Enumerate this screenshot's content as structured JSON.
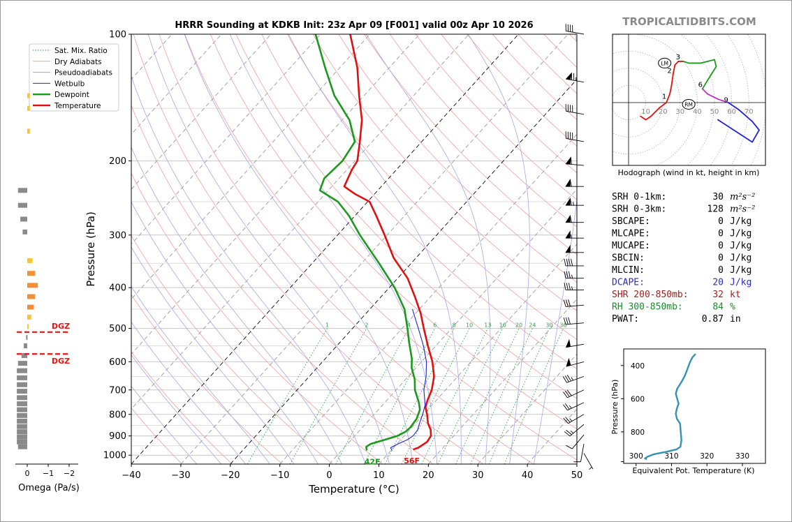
{
  "title": "HRRR Sounding at KDKB Init: 23z Apr 09 [F001] valid 00z Apr 10 2026",
  "watermark": "TROPICALTIDBITS.COM",
  "legend": [
    {
      "label": "Sat. Mix. Ratio",
      "color": "#2e9e4a",
      "style": "dotted"
    },
    {
      "label": "Dry Adiabats",
      "color": "#f0a0a0",
      "style": "solid"
    },
    {
      "label": "Pseudoadiabats",
      "color": "#a0a0e8",
      "style": "solid"
    },
    {
      "label": "Wetbulb",
      "color": "#1f1fe0",
      "style": "solid"
    },
    {
      "label": "Dewpoint",
      "color": "#1a9a1a",
      "style": "solid-thick"
    },
    {
      "label": "Temperature",
      "color": "#e01010",
      "style": "solid-thick"
    }
  ],
  "omega": {
    "xlabel": "Omega (Pa/s)",
    "ticks": [
      "0",
      "−1",
      "−2"
    ],
    "dgz_label": "DGZ"
  },
  "surface": {
    "dewpoint": "42F",
    "temperature": "56F"
  },
  "mixing_ratio_labels": [
    "1",
    "2",
    "4",
    "6",
    "8",
    "10",
    "13",
    "16",
    "20",
    "24",
    "30",
    "36"
  ],
  "hodograph": {
    "label": "Hodograph (wind in kt, height in km)",
    "ring_labels": [
      "10",
      "20",
      "30",
      "40",
      "50",
      "60",
      "70"
    ],
    "height_marks": [
      "1",
      "2",
      "3",
      "6",
      "9"
    ],
    "lm_label": "LM",
    "rm_label": "RM"
  },
  "indices": [
    {
      "name": "SRH 0-1km:",
      "value": "30",
      "unit": "m²s⁻²",
      "color": "#000000"
    },
    {
      "name": "SRH 0-3km:",
      "value": "128",
      "unit": "m²s⁻²",
      "color": "#000000"
    },
    {
      "name": "SBCAPE:",
      "value": "0",
      "unit": "J/kg",
      "color": "#000000"
    },
    {
      "name": "MLCAPE:",
      "value": "0",
      "unit": "J/kg",
      "color": "#000000"
    },
    {
      "name": "MUCAPE:",
      "value": "0",
      "unit": "J/kg",
      "color": "#000000"
    },
    {
      "name": "SBCIN:",
      "value": "0",
      "unit": "J/kg",
      "color": "#000000"
    },
    {
      "name": "MLCIN:",
      "value": "0",
      "unit": "J/kg",
      "color": "#000000"
    },
    {
      "name": "DCAPE:",
      "value": "20",
      "unit": "J/kg",
      "color": "#2a2ad0"
    },
    {
      "name": "SHR 200-850mb:",
      "value": "32",
      "unit": "kt",
      "color": "#a02020"
    },
    {
      "name": "RH 300-850mb:",
      "value": "84",
      "unit": "%",
      "color": "#1a8a2a"
    },
    {
      "name": "PWAT:",
      "value": "0.87",
      "unit": "in",
      "color": "#000000"
    }
  ],
  "theta_e": {
    "ylabel": "Pressure (hPa)",
    "xlabel": "Equivalent Pot. Temperature (K)",
    "xticks": [
      "300",
      "310",
      "320",
      "330"
    ],
    "yticks": [
      "400",
      "600",
      "800"
    ]
  },
  "chart_data": {
    "type": "line",
    "title": "HRRR Sounding at KDKB Init: 23z Apr 09 [F001] valid 00z Apr 10 2026",
    "xlabel": "Temperature (°C)",
    "ylabel": "Pressure (hPa)",
    "xlim": [
      -40,
      50
    ],
    "ylim": [
      1050,
      100
    ],
    "y_scale": "log",
    "skew": "skew-T log-P",
    "xticks": [
      "−40",
      "−30",
      "−20",
      "−10",
      "0",
      "10",
      "20",
      "30",
      "40",
      "50"
    ],
    "yticks": [
      "100",
      "200",
      "300",
      "400",
      "500",
      "600",
      "700",
      "800",
      "900",
      "1000"
    ],
    "series": [
      {
        "name": "Temperature",
        "color": "#e01010",
        "points": [
          [
            970,
            14.3
          ],
          [
            960,
            15.0
          ],
          [
            930,
            15.7
          ],
          [
            900,
            15.4
          ],
          [
            870,
            14.2
          ],
          [
            840,
            12.5
          ],
          [
            800,
            10.7
          ],
          [
            770,
            9.1
          ],
          [
            740,
            8.2
          ],
          [
            700,
            7.2
          ],
          [
            650,
            5.2
          ],
          [
            600,
            2.2
          ],
          [
            550,
            -1.6
          ],
          [
            500,
            -5.6
          ],
          [
            460,
            -9.0
          ],
          [
            420,
            -13.2
          ],
          [
            380,
            -18.0
          ],
          [
            340,
            -24.5
          ],
          [
            300,
            -30.5
          ],
          [
            270,
            -35.7
          ],
          [
            250,
            -39.6
          ],
          [
            240,
            -43.8
          ],
          [
            230,
            -47.5
          ],
          [
            210,
            -49.0
          ],
          [
            200,
            -49.5
          ],
          [
            180,
            -52.5
          ],
          [
            160,
            -56.0
          ],
          [
            140,
            -61.0
          ],
          [
            120,
            -66.5
          ],
          [
            100,
            -74.0
          ]
        ]
      },
      {
        "name": "Dewpoint",
        "color": "#1a9a1a",
        "points": [
          [
            975,
            5.1
          ],
          [
            955,
            4.3
          ],
          [
            940,
            4.7
          ],
          [
            920,
            6.7
          ],
          [
            900,
            8.6
          ],
          [
            880,
            9.5
          ],
          [
            860,
            9.7
          ],
          [
            820,
            9.4
          ],
          [
            780,
            8.4
          ],
          [
            750,
            6.9
          ],
          [
            700,
            3.8
          ],
          [
            660,
            1.8
          ],
          [
            620,
            -0.9
          ],
          [
            590,
            -2.5
          ],
          [
            540,
            -6.0
          ],
          [
            500,
            -8.9
          ],
          [
            450,
            -13.0
          ],
          [
            400,
            -18.9
          ],
          [
            350,
            -26.5
          ],
          [
            300,
            -35.5
          ],
          [
            270,
            -41.2
          ],
          [
            250,
            -46.0
          ],
          [
            235,
            -51.7
          ],
          [
            220,
            -53.0
          ],
          [
            200,
            -52.5
          ],
          [
            180,
            -53.5
          ],
          [
            160,
            -58.5
          ],
          [
            140,
            -66.0
          ],
          [
            120,
            -73.0
          ],
          [
            100,
            -81.0
          ]
        ]
      },
      {
        "name": "Wetbulb",
        "color": "#1f1fe0",
        "points": [
          [
            975,
            10.2
          ],
          [
            960,
            9.4
          ],
          [
            940,
            10.2
          ],
          [
            920,
            11.3
          ],
          [
            900,
            11.8
          ],
          [
            870,
            11.6
          ],
          [
            840,
            10.8
          ],
          [
            800,
            9.8
          ],
          [
            760,
            8.6
          ],
          [
            700,
            5.6
          ],
          [
            650,
            3.6
          ],
          [
            600,
            1.0
          ],
          [
            550,
            -2.5
          ],
          [
            500,
            -6.7
          ],
          [
            450,
            -11.4
          ]
        ]
      }
    ],
    "omega_pa_s": [
      {
        "p": 170,
        "v": 0.2
      },
      {
        "p": 150,
        "v": 0.2
      },
      {
        "p": 140,
        "v": 0.2
      },
      {
        "p": 235,
        "v": -0.8
      },
      {
        "p": 255,
        "v": -0.8
      },
      {
        "p": 275,
        "v": -0.6
      },
      {
        "p": 295,
        "v": -0.4
      },
      {
        "p": 345,
        "v": 0.4
      },
      {
        "p": 370,
        "v": 0.6
      },
      {
        "p": 395,
        "v": 0.8
      },
      {
        "p": 420,
        "v": 0.6
      },
      {
        "p": 445,
        "v": 0.5
      },
      {
        "p": 470,
        "v": 0.3
      },
      {
        "p": 495,
        "v": 0.1
      },
      {
        "p": 525,
        "v": -0.1
      },
      {
        "p": 550,
        "v": -0.3
      },
      {
        "p": 580,
        "v": -0.5
      },
      {
        "p": 605,
        "v": -0.8
      },
      {
        "p": 630,
        "v": -0.9
      },
      {
        "p": 655,
        "v": -0.9
      },
      {
        "p": 680,
        "v": -0.9
      },
      {
        "p": 705,
        "v": -0.9
      },
      {
        "p": 730,
        "v": -0.9
      },
      {
        "p": 755,
        "v": -0.9
      },
      {
        "p": 780,
        "v": -0.9
      },
      {
        "p": 805,
        "v": -0.9
      },
      {
        "p": 830,
        "v": -0.9
      },
      {
        "p": 855,
        "v": -0.9
      },
      {
        "p": 880,
        "v": -0.9
      },
      {
        "p": 905,
        "v": -0.9
      },
      {
        "p": 930,
        "v": -0.9
      },
      {
        "p": 955,
        "v": -0.8
      }
    ],
    "dgz_pressures": [
      510,
      575
    ],
    "wind_barbs": [
      {
        "p": 100,
        "dir": 280,
        "kt": 40
      },
      {
        "p": 130,
        "dir": 280,
        "kt": 75
      },
      {
        "p": 155,
        "dir": 280,
        "kt": 40
      },
      {
        "p": 180,
        "dir": 280,
        "kt": 40
      },
      {
        "p": 205,
        "dir": 275,
        "kt": 60
      },
      {
        "p": 230,
        "dir": 270,
        "kt": 60
      },
      {
        "p": 255,
        "dir": 270,
        "kt": 65
      },
      {
        "p": 280,
        "dir": 270,
        "kt": 60
      },
      {
        "p": 305,
        "dir": 270,
        "kt": 55
      },
      {
        "p": 330,
        "dir": 270,
        "kt": 50
      },
      {
        "p": 355,
        "dir": 270,
        "kt": 40
      },
      {
        "p": 380,
        "dir": 270,
        "kt": 35
      },
      {
        "p": 405,
        "dir": 270,
        "kt": 35
      },
      {
        "p": 440,
        "dir": 265,
        "kt": 30
      },
      {
        "p": 485,
        "dir": 265,
        "kt": 30
      },
      {
        "p": 545,
        "dir": 260,
        "kt": 50
      },
      {
        "p": 600,
        "dir": 255,
        "kt": 50
      },
      {
        "p": 650,
        "dir": 250,
        "kt": 35
      },
      {
        "p": 700,
        "dir": 245,
        "kt": 30
      },
      {
        "p": 750,
        "dir": 245,
        "kt": 25
      },
      {
        "p": 800,
        "dir": 240,
        "kt": 25
      },
      {
        "p": 845,
        "dir": 230,
        "kt": 25
      },
      {
        "p": 895,
        "dir": 220,
        "kt": 10
      },
      {
        "p": 940,
        "dir": 190,
        "kt": 10
      },
      {
        "p": 990,
        "dir": 150,
        "kt": 5
      }
    ],
    "hodograph_trace": [
      {
        "u": 7,
        "v": -8,
        "c": "#e01010"
      },
      {
        "u": 10,
        "v": -10,
        "c": "#e01010"
      },
      {
        "u": 13,
        "v": -8,
        "c": "#e01010"
      },
      {
        "u": 18,
        "v": -3,
        "c": "#e01010"
      },
      {
        "u": 22,
        "v": 0,
        "c": "#e01010"
      },
      {
        "u": 24,
        "v": 5,
        "c": "#e01010"
      },
      {
        "u": 25,
        "v": 10,
        "c": "#e01010"
      },
      {
        "u": 26,
        "v": 17,
        "c": "#e01010"
      },
      {
        "u": 27,
        "v": 22,
        "c": "#e01010"
      },
      {
        "u": 29,
        "v": 24,
        "c": "#e01010"
      },
      {
        "u": 32,
        "v": 24,
        "c": "#e01010"
      },
      {
        "u": 35,
        "v": 23,
        "c": "#1a9a1a"
      },
      {
        "u": 42,
        "v": 23,
        "c": "#1a9a1a"
      },
      {
        "u": 46,
        "v": 24,
        "c": "#1a9a1a"
      },
      {
        "u": 50,
        "v": 25,
        "c": "#1a9a1a"
      },
      {
        "u": 51,
        "v": 21,
        "c": "#1a9a1a"
      },
      {
        "u": 46,
        "v": 13,
        "c": "#1a9a1a"
      },
      {
        "u": 43,
        "v": 8,
        "c": "#1a9a1a"
      },
      {
        "u": 43,
        "v": 8,
        "c": "#c030c0"
      },
      {
        "u": 46,
        "v": 5,
        "c": "#c030c0"
      },
      {
        "u": 52,
        "v": 2,
        "c": "#c030c0"
      },
      {
        "u": 58,
        "v": 0,
        "c": "#c030c0"
      },
      {
        "u": 58,
        "v": 0,
        "c": "#2020e0"
      },
      {
        "u": 64,
        "v": -4,
        "c": "#2020e0"
      },
      {
        "u": 72,
        "v": -11,
        "c": "#2020e0"
      },
      {
        "u": 76,
        "v": -16,
        "c": "#2020e0"
      },
      {
        "u": 72,
        "v": -23,
        "c": "#2020e0"
      },
      {
        "u": 52,
        "v": -10,
        "c": "#2020e0"
      }
    ],
    "hodograph_height_points": [
      {
        "u": 22,
        "v": 1
      },
      {
        "u": 25,
        "v": 16
      },
      {
        "u": 30,
        "v": 24
      },
      {
        "u": 43,
        "v": 8
      },
      {
        "u": 58,
        "v": -1
      }
    ],
    "storm_motion": {
      "lm": {
        "u": 21,
        "v": 23
      },
      "rm": {
        "u": 35,
        "v": -1
      }
    },
    "theta_e_profile": [
      {
        "p": 965,
        "t": 303.0
      },
      {
        "p": 960,
        "t": 302.5
      },
      {
        "p": 950,
        "t": 303.2
      },
      {
        "p": 935,
        "t": 305.0
      },
      {
        "p": 920,
        "t": 308.5
      },
      {
        "p": 905,
        "t": 311.5
      },
      {
        "p": 890,
        "t": 312.5
      },
      {
        "p": 850,
        "t": 312.8
      },
      {
        "p": 800,
        "t": 312.6
      },
      {
        "p": 750,
        "t": 312.4
      },
      {
        "p": 720,
        "t": 311.5
      },
      {
        "p": 690,
        "t": 311.2
      },
      {
        "p": 660,
        "t": 311.5
      },
      {
        "p": 630,
        "t": 312.0
      },
      {
        "p": 600,
        "t": 311.6
      },
      {
        "p": 570,
        "t": 311.2
      },
      {
        "p": 540,
        "t": 311.6
      },
      {
        "p": 500,
        "t": 312.8
      },
      {
        "p": 460,
        "t": 313.8
      },
      {
        "p": 420,
        "t": 314.5
      },
      {
        "p": 380,
        "t": 315.2
      },
      {
        "p": 350,
        "t": 315.9
      },
      {
        "p": 330,
        "t": 316.8
      }
    ]
  }
}
